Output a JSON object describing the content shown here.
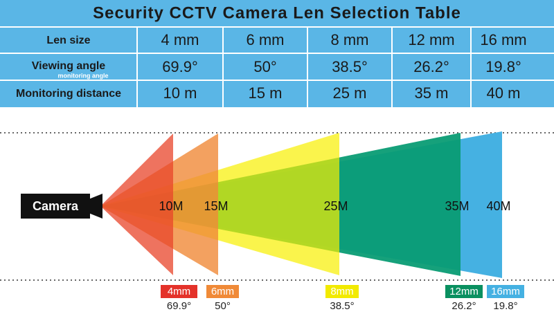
{
  "header": {
    "title": "Security CCTV Camera Len Selection Table"
  },
  "table": {
    "rows": [
      {
        "label": "Len size",
        "cells": [
          "4 mm",
          "6 mm",
          "8 mm",
          "12 mm",
          "16 mm"
        ]
      },
      {
        "label": "Viewing angle",
        "note": "monitoring angle",
        "cells": [
          "69.9°",
          "50°",
          "38.5°",
          "26.2°",
          "19.8°"
        ]
      },
      {
        "label": "Monitoring distance",
        "cells": [
          "10 m",
          "15 m",
          "25 m",
          "35 m",
          "40 m"
        ]
      }
    ]
  },
  "diagram": {
    "camera": "Camera",
    "distances": [
      "10M",
      "15M",
      "25M",
      "35M",
      "40M"
    ],
    "lenses": [
      {
        "label": "4mm",
        "angle": "69.9°"
      },
      {
        "label": "6mm",
        "angle": "50°"
      },
      {
        "label": "8mm",
        "angle": "38.5°"
      },
      {
        "label": "12mm",
        "angle": "26.2°"
      },
      {
        "label": "16mm",
        "angle": "19.8°"
      }
    ]
  }
}
